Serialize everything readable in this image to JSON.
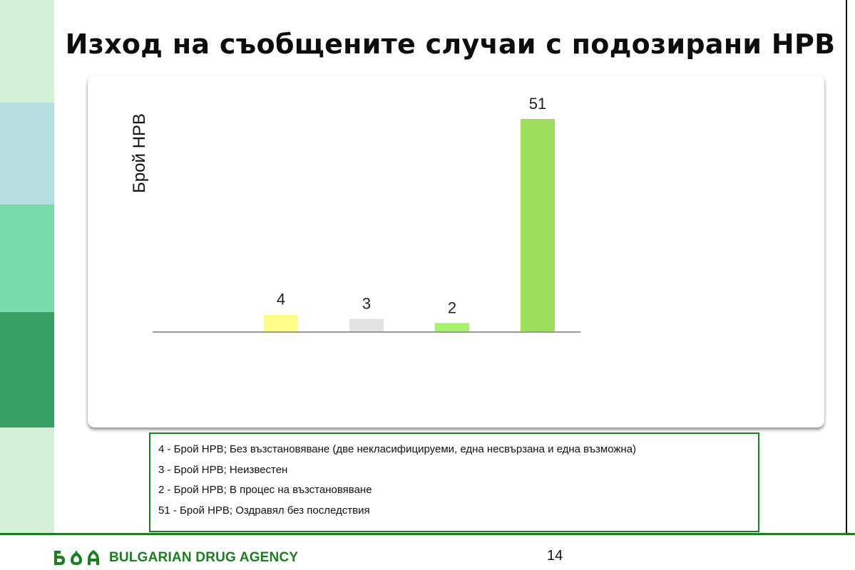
{
  "page": {
    "title": "Изход на съобщените случаи с подозирани НРВ",
    "page_number": "14",
    "footer_brand": "BULGARIAN DRUG AGENCY",
    "accent_color": "#1a7f1f"
  },
  "chart_data": {
    "type": "bar",
    "title": "",
    "xlabel": "",
    "ylabel": "Брой НРВ",
    "categories": [
      "",
      "",
      "",
      "",
      ""
    ],
    "values": [
      0,
      4,
      3,
      2,
      51
    ],
    "data_labels": [
      "",
      "4",
      "3",
      "2",
      "51"
    ],
    "colors": [
      "#ffffff",
      "#fdfd8c",
      "#e3e3e3",
      "#a6f26e",
      "#9fdd5e"
    ],
    "ylim": [
      0,
      51
    ],
    "grid": false,
    "legend": "none"
  },
  "legend": {
    "items": [
      "4 - Брой НРВ; Без възстановяване (две некласифицируеми, една несвързана и една възможна)",
      "3 - Брой НРВ; Неизвестен",
      "2 - Брой НРВ; В процес на възстановяване",
      "51 - Брой НРВ; Оздравял без последствия"
    ]
  }
}
